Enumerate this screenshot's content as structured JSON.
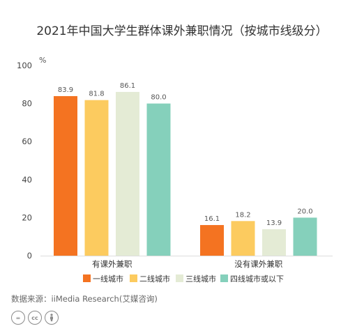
{
  "chart_data": {
    "type": "bar",
    "title": "2021年中国大学生群体课外兼职情况（按城市线级分）",
    "ylabel": "%",
    "ylim": [
      0,
      100
    ],
    "yticks": [
      "0",
      "20",
      "40",
      "60",
      "80",
      "100"
    ],
    "categories": [
      "有课外兼职",
      "没有课外兼职"
    ],
    "series": [
      {
        "name": "一线城市",
        "color": "#f47321",
        "values": [
          83.9,
          16.1
        ]
      },
      {
        "name": "二线城市",
        "color": "#fccb5f",
        "values": [
          81.8,
          18.2
        ]
      },
      {
        "name": "三线城市",
        "color": "#e4ebd5",
        "values": [
          86.1,
          13.9
        ]
      },
      {
        "name": "四线城市或以下",
        "color": "#85d0bb",
        "values": [
          80.0,
          20.0
        ]
      }
    ],
    "data_labels": [
      [
        "83.9",
        "16.1"
      ],
      [
        "81.8",
        "18.2"
      ],
      [
        "86.1",
        "13.9"
      ],
      [
        "80.0",
        "20.0"
      ]
    ],
    "legend_position": "bottom",
    "grid": false
  },
  "source": "数据来源：iiMedia Research(艾媒咨询)",
  "license_icons": [
    "equals-icon",
    "cc-icon",
    "person-icon"
  ]
}
